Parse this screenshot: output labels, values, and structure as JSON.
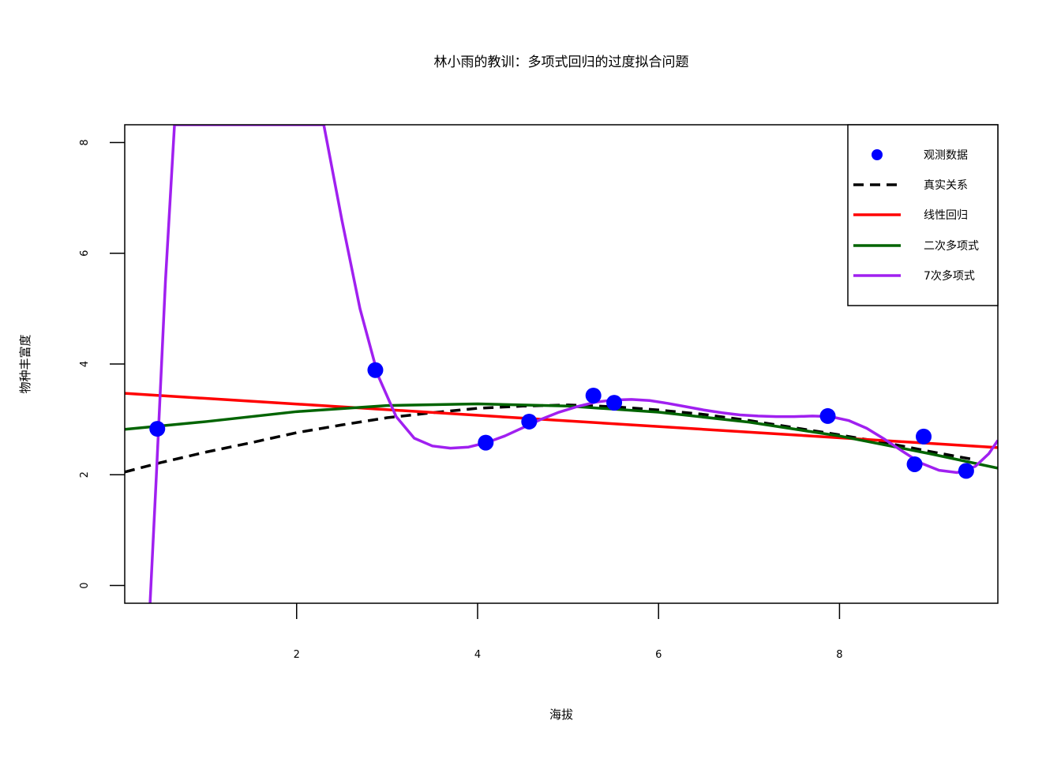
{
  "chart_data": {
    "type": "scatter",
    "title": "林小雨的教训：多项式回归的过度拟合问题",
    "xlabel": "海拔",
    "ylabel": "物种丰富度",
    "xlim": [
      0.1,
      9.75
    ],
    "ylim": [
      -0.32,
      8.32
    ],
    "x_ticks": [
      2,
      4,
      6,
      8
    ],
    "y_ticks": [
      0,
      2,
      4,
      6,
      8
    ],
    "grid": false,
    "legend_position": "top-right",
    "points": {
      "name": "观测数据",
      "color": "#0000ff",
      "x": [
        0.46,
        2.87,
        4.09,
        4.57,
        5.28,
        5.51,
        7.87,
        8.83,
        8.93,
        9.4
      ],
      "y": [
        2.83,
        3.89,
        2.58,
        2.96,
        3.43,
        3.3,
        3.06,
        2.19,
        2.69,
        2.07
      ]
    },
    "series": [
      {
        "name": "真实关系",
        "color": "#000000",
        "style": "dashed",
        "x": [
          0.1,
          0.5,
          1.0,
          1.5,
          2.0,
          2.5,
          3.0,
          3.5,
          4.0,
          4.5,
          5.0,
          5.5,
          6.0,
          6.5,
          7.0,
          7.5,
          8.0,
          8.5,
          9.0,
          9.5
        ],
        "y": [
          2.05,
          2.22,
          2.41,
          2.58,
          2.76,
          2.9,
          3.03,
          3.12,
          3.2,
          3.24,
          3.26,
          3.23,
          3.17,
          3.09,
          2.98,
          2.85,
          2.72,
          2.58,
          2.42,
          2.27
        ]
      },
      {
        "name": "线性回归",
        "color": "#ff0000",
        "style": "solid",
        "x": [
          0.1,
          9.75
        ],
        "y": [
          3.47,
          2.49
        ]
      },
      {
        "name": "二次多项式",
        "color": "#006400",
        "style": "solid",
        "x": [
          0.1,
          1.0,
          2.0,
          3.0,
          4.0,
          5.0,
          6.0,
          7.0,
          8.0,
          9.0,
          9.75
        ],
        "y": [
          2.82,
          2.96,
          3.14,
          3.25,
          3.28,
          3.24,
          3.13,
          2.95,
          2.7,
          2.38,
          2.12
        ]
      },
      {
        "name": "7次多项式",
        "color": "#a020f0",
        "style": "solid",
        "x": [
          0.38,
          0.45,
          0.55,
          0.65,
          2.3,
          2.5,
          2.7,
          2.9,
          3.1,
          3.3,
          3.5,
          3.7,
          3.9,
          4.1,
          4.3,
          4.5,
          4.7,
          4.9,
          5.1,
          5.3,
          5.5,
          5.7,
          5.9,
          6.1,
          6.3,
          6.5,
          6.7,
          6.9,
          7.1,
          7.3,
          7.5,
          7.7,
          7.9,
          8.1,
          8.3,
          8.5,
          8.7,
          8.9,
          9.1,
          9.3,
          9.5,
          9.65,
          9.75
        ],
        "y": [
          -0.32,
          2.0,
          5.5,
          8.32,
          8.32,
          6.6,
          5.0,
          3.79,
          3.05,
          2.66,
          2.52,
          2.48,
          2.5,
          2.58,
          2.7,
          2.85,
          3.0,
          3.13,
          3.23,
          3.31,
          3.35,
          3.36,
          3.34,
          3.29,
          3.23,
          3.17,
          3.12,
          3.08,
          3.06,
          3.05,
          3.05,
          3.06,
          3.05,
          2.98,
          2.84,
          2.64,
          2.42,
          2.21,
          2.08,
          2.04,
          2.15,
          2.38,
          2.62
        ]
      }
    ]
  }
}
